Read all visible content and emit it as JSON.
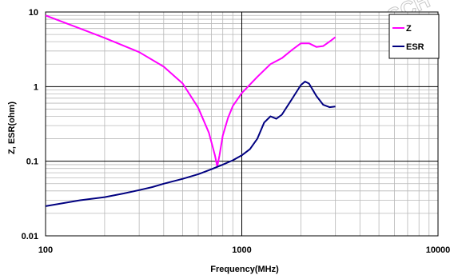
{
  "chart_data": {
    "type": "line",
    "xlabel": "Frequency(MHz)",
    "ylabel": "Z, ESR(ohm)",
    "x_scale": "log",
    "y_scale": "log",
    "xlim": [
      100,
      10000
    ],
    "ylim": [
      0.01,
      10
    ],
    "x_ticks": [
      "100",
      "1000",
      "10000"
    ],
    "y_ticks": [
      "10",
      "1",
      "0.1",
      "0.01"
    ],
    "grid": true,
    "legend_position": "top-right",
    "watermark": "SCH",
    "series": [
      {
        "name": "Z",
        "color": "#ff00ff",
        "points": [
          [
            100,
            9.0
          ],
          [
            150,
            6.0
          ],
          [
            200,
            4.5
          ],
          [
            300,
            2.9
          ],
          [
            400,
            1.85
          ],
          [
            500,
            1.1
          ],
          [
            600,
            0.52
          ],
          [
            680,
            0.24
          ],
          [
            730,
            0.12
          ],
          [
            750,
            0.085
          ],
          [
            770,
            0.12
          ],
          [
            800,
            0.22
          ],
          [
            850,
            0.38
          ],
          [
            900,
            0.55
          ],
          [
            1000,
            0.82
          ],
          [
            1200,
            1.35
          ],
          [
            1400,
            2.0
          ],
          [
            1600,
            2.4
          ],
          [
            1800,
            3.1
          ],
          [
            2000,
            3.8
          ],
          [
            2200,
            3.8
          ],
          [
            2400,
            3.4
          ],
          [
            2600,
            3.5
          ],
          [
            2800,
            4.0
          ],
          [
            3000,
            4.6
          ]
        ]
      },
      {
        "name": "ESR",
        "color": "#000080",
        "points": [
          [
            100,
            0.025
          ],
          [
            150,
            0.03
          ],
          [
            200,
            0.033
          ],
          [
            250,
            0.037
          ],
          [
            300,
            0.041
          ],
          [
            350,
            0.045
          ],
          [
            400,
            0.05
          ],
          [
            500,
            0.058
          ],
          [
            600,
            0.067
          ],
          [
            700,
            0.078
          ],
          [
            800,
            0.09
          ],
          [
            900,
            0.103
          ],
          [
            1000,
            0.12
          ],
          [
            1100,
            0.145
          ],
          [
            1200,
            0.2
          ],
          [
            1300,
            0.33
          ],
          [
            1400,
            0.4
          ],
          [
            1500,
            0.37
          ],
          [
            1600,
            0.42
          ],
          [
            1800,
            0.68
          ],
          [
            2000,
            1.05
          ],
          [
            2100,
            1.17
          ],
          [
            2200,
            1.1
          ],
          [
            2400,
            0.75
          ],
          [
            2600,
            0.57
          ],
          [
            2800,
            0.53
          ],
          [
            3000,
            0.54
          ]
        ]
      }
    ]
  }
}
